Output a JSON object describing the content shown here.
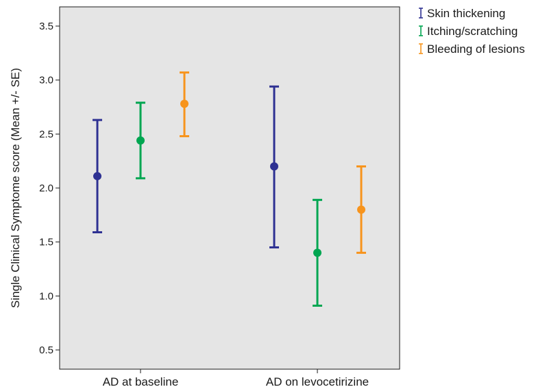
{
  "chart_data": {
    "type": "errorbar",
    "title": "",
    "xlabel": "",
    "ylabel": "Single Clinical Symptome score (Mean +/- SE)",
    "ylim": [
      0.3,
      3.65
    ],
    "yticks": [
      0.5,
      1.0,
      1.5,
      2.0,
      2.5,
      3.0,
      3.5
    ],
    "ytick_labels": [
      "0.5",
      "1.0",
      "1.5",
      "2.0",
      "2.5",
      "3.0",
      "3.5"
    ],
    "categories": [
      "AD at baseline",
      "AD on levocetirizine"
    ],
    "grid": false,
    "plot_background": "#e5e5e5",
    "legend_position": "top-right-outside",
    "series": [
      {
        "name": "Skin thickening",
        "color": "#2e3192",
        "mean": [
          2.11,
          2.2
        ],
        "lower": [
          1.59,
          1.45
        ],
        "upper": [
          2.63,
          2.94
        ]
      },
      {
        "name": "Itching/scratching",
        "color": "#00a651",
        "mean": [
          2.44,
          1.4
        ],
        "lower": [
          2.09,
          0.91
        ],
        "upper": [
          2.79,
          1.89
        ]
      },
      {
        "name": "Bleeding of lesions",
        "color": "#f7941d",
        "mean": [
          2.78,
          1.8
        ],
        "lower": [
          2.48,
          1.4
        ],
        "upper": [
          3.07,
          2.2
        ]
      }
    ]
  }
}
